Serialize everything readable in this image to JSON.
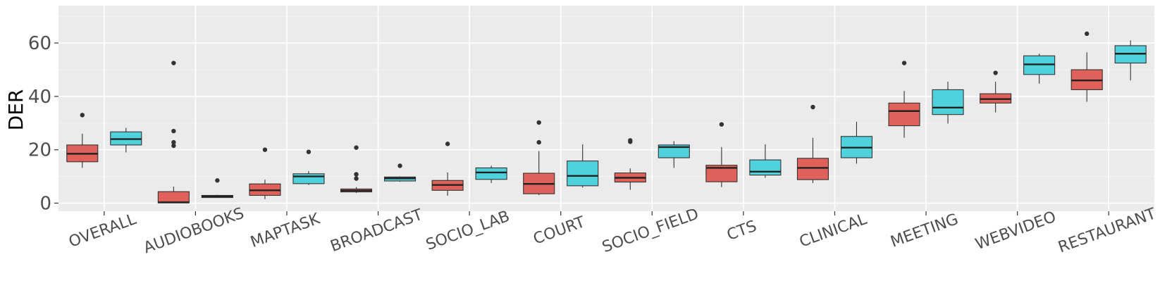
{
  "chart_data": {
    "type": "boxplot",
    "title": "",
    "xlabel": "",
    "ylabel": "DER",
    "ylim": [
      -3.5,
      73
    ],
    "yticks": [
      0,
      20,
      40,
      60
    ],
    "grid": true,
    "legend": "none",
    "categories": [
      "OVERALL",
      "AUDIOBOOKS",
      "MAPTASK",
      "BROADCAST",
      "SOCIO_LAB",
      "COURT",
      "SOCIO_FIELD",
      "CTS",
      "CLINICAL",
      "MEETING",
      "WEBVIDEO",
      "RESTAURANT"
    ],
    "series": [
      {
        "color": "#e0605a",
        "boxes": [
          {
            "whisker_low": 13.2,
            "q1": 15.5,
            "median": 18.5,
            "q3": 21.8,
            "whisker_high": 26.0,
            "outliers": [
              33.0
            ]
          },
          {
            "whisker_low": 0.0,
            "q1": 0.1,
            "median": 0.3,
            "q3": 4.3,
            "whisker_high": 6.2,
            "outliers": [
              21.5,
              22.8,
              27.0,
              52.5
            ]
          },
          {
            "whisker_low": 1.5,
            "q1": 2.9,
            "median": 4.8,
            "q3": 7.2,
            "whisker_high": 8.8,
            "outliers": [
              20.0
            ]
          },
          {
            "whisker_low": 3.8,
            "q1": 4.2,
            "median": 4.7,
            "q3": 5.3,
            "whisker_high": 6.0,
            "outliers": [
              9.2,
              10.8,
              20.8
            ]
          },
          {
            "whisker_low": 2.8,
            "q1": 4.8,
            "median": 6.8,
            "q3": 8.5,
            "whisker_high": 11.5,
            "outliers": [
              22.2
            ]
          },
          {
            "whisker_low": 3.0,
            "q1": 3.5,
            "median": 7.2,
            "q3": 11.2,
            "whisker_high": 19.5,
            "outliers": [
              22.8,
              30.2
            ]
          },
          {
            "whisker_low": 5.0,
            "q1": 7.9,
            "median": 9.5,
            "q3": 11.3,
            "whisker_high": 13.0,
            "outliers": [
              23.0,
              23.5
            ]
          },
          {
            "whisker_low": 6.0,
            "q1": 8.0,
            "median": 13.2,
            "q3": 14.2,
            "whisker_high": 21.0,
            "outliers": [
              29.5
            ]
          },
          {
            "whisker_low": 7.5,
            "q1": 8.8,
            "median": 13.2,
            "q3": 16.8,
            "whisker_high": 24.5,
            "outliers": [
              36.0
            ]
          },
          {
            "whisker_low": 24.5,
            "q1": 29.0,
            "median": 34.5,
            "q3": 37.5,
            "whisker_high": 42.0,
            "outliers": [
              52.5
            ]
          },
          {
            "whisker_low": 34.0,
            "q1": 37.5,
            "median": 39.0,
            "q3": 41.0,
            "whisker_high": 45.5,
            "outliers": [
              48.8
            ]
          },
          {
            "whisker_low": 38.0,
            "q1": 42.5,
            "median": 46.0,
            "q3": 50.0,
            "whisker_high": 56.5,
            "outliers": [
              63.5
            ]
          }
        ]
      },
      {
        "color": "#50d2dc",
        "boxes": [
          {
            "whisker_low": 19.0,
            "q1": 21.8,
            "median": 24.0,
            "q3": 26.7,
            "whisker_high": 28.2,
            "outliers": []
          },
          {
            "whisker_low": 2.0,
            "q1": 2.1,
            "median": 2.5,
            "q3": 2.9,
            "whisker_high": 3.1,
            "outliers": [
              8.5
            ]
          },
          {
            "whisker_low": 6.8,
            "q1": 7.3,
            "median": 10.0,
            "q3": 11.0,
            "whisker_high": 12.0,
            "outliers": [
              19.2
            ]
          },
          {
            "whisker_low": 8.0,
            "q1": 8.3,
            "median": 9.3,
            "q3": 9.8,
            "whisker_high": 10.0,
            "outliers": [
              14.0
            ]
          },
          {
            "whisker_low": 7.5,
            "q1": 8.9,
            "median": 11.5,
            "q3": 13.2,
            "whisker_high": 14.0,
            "outliers": []
          },
          {
            "whisker_low": 5.8,
            "q1": 6.5,
            "median": 10.2,
            "q3": 15.8,
            "whisker_high": 22.0,
            "outliers": []
          },
          {
            "whisker_low": 13.2,
            "q1": 17.0,
            "median": 21.0,
            "q3": 21.8,
            "whisker_high": 23.2,
            "outliers": []
          },
          {
            "whisker_low": 9.5,
            "q1": 10.5,
            "median": 11.8,
            "q3": 16.2,
            "whisker_high": 22.0,
            "outliers": []
          },
          {
            "whisker_low": 14.8,
            "q1": 17.0,
            "median": 20.8,
            "q3": 25.0,
            "whisker_high": 30.5,
            "outliers": []
          },
          {
            "whisker_low": 29.8,
            "q1": 33.2,
            "median": 35.8,
            "q3": 42.5,
            "whisker_high": 45.5,
            "outliers": []
          },
          {
            "whisker_low": 44.8,
            "q1": 48.2,
            "median": 52.0,
            "q3": 55.2,
            "whisker_high": 56.0,
            "outliers": []
          },
          {
            "whisker_low": 46.0,
            "q1": 52.5,
            "median": 56.0,
            "q3": 59.0,
            "whisker_high": 61.0,
            "outliers": []
          }
        ]
      }
    ]
  }
}
